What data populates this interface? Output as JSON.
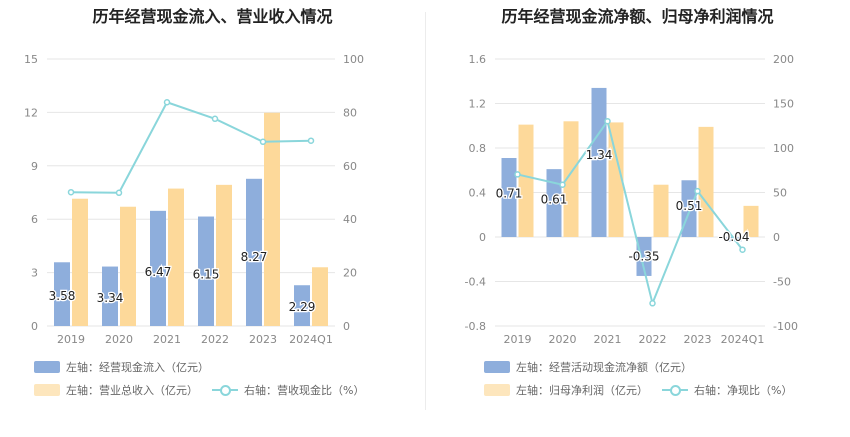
{
  "chart_data": [
    {
      "type": "bar",
      "title": "历年经营现金流入、营业收入情况",
      "categories": [
        "2019",
        "2020",
        "2021",
        "2022",
        "2023",
        "2024Q1"
      ],
      "left_axis": {
        "min": 0,
        "max": 15,
        "ticks": [
          "0",
          "3",
          "6",
          "9",
          "12",
          "15"
        ]
      },
      "right_axis": {
        "min": 0,
        "max": 100,
        "ticks": [
          "0",
          "20",
          "40",
          "60",
          "80",
          "100"
        ]
      },
      "series": [
        {
          "name": "左轴：经营现金流入（亿元）",
          "type": "bar",
          "axis": "left",
          "color": "#8eaedc",
          "values": [
            3.58,
            3.34,
            6.47,
            6.15,
            8.27,
            2.29
          ],
          "labels": [
            "3.58",
            "3.34",
            "6.47",
            "6.15",
            "8.27",
            "2.29"
          ]
        },
        {
          "name": "左轴：营业总收入（亿元）",
          "type": "bar",
          "axis": "left",
          "color": "#fdd99a",
          "values": [
            7.15,
            6.7,
            7.72,
            7.93,
            11.98,
            3.3
          ]
        },
        {
          "name": "右轴：营收现金比（%）",
          "type": "line",
          "axis": "right",
          "color": "#8ad6db",
          "values": [
            50.1,
            49.9,
            83.8,
            77.6,
            69.0,
            69.4
          ]
        }
      ],
      "legend_position": "bottom"
    },
    {
      "type": "bar",
      "title": "历年经营现金流净额、归母净利润情况",
      "categories": [
        "2019",
        "2020",
        "2021",
        "2022",
        "2023",
        "2024Q1"
      ],
      "left_axis": {
        "min": -0.8,
        "max": 1.6,
        "ticks": [
          "-0.8",
          "-0.4",
          "0",
          "0.4",
          "0.8",
          "1.2",
          "1.6"
        ]
      },
      "right_axis": {
        "min": -100,
        "max": 200,
        "ticks": [
          "-100",
          "-50",
          "0",
          "50",
          "100",
          "150",
          "200"
        ]
      },
      "series": [
        {
          "name": "左轴：经营活动现金流净额（亿元）",
          "type": "bar",
          "axis": "left",
          "color": "#8eaedc",
          "values": [
            0.71,
            0.61,
            1.34,
            -0.35,
            0.51,
            -0.04
          ],
          "labels": [
            "0.71",
            "0.61",
            "1.34",
            "-0.35",
            "0.51",
            "-0.04"
          ]
        },
        {
          "name": "左轴：归母净利润（亿元）",
          "type": "bar",
          "axis": "left",
          "color": "#fdd99a",
          "values": [
            1.01,
            1.04,
            1.03,
            0.47,
            0.99,
            0.28
          ]
        },
        {
          "name": "右轴：净现比（%）",
          "type": "line",
          "axis": "right",
          "color": "#8ad6db",
          "values": [
            70.3,
            58.7,
            130.1,
            -74.5,
            51.5,
            -14.3
          ]
        }
      ],
      "legend_position": "bottom"
    }
  ]
}
